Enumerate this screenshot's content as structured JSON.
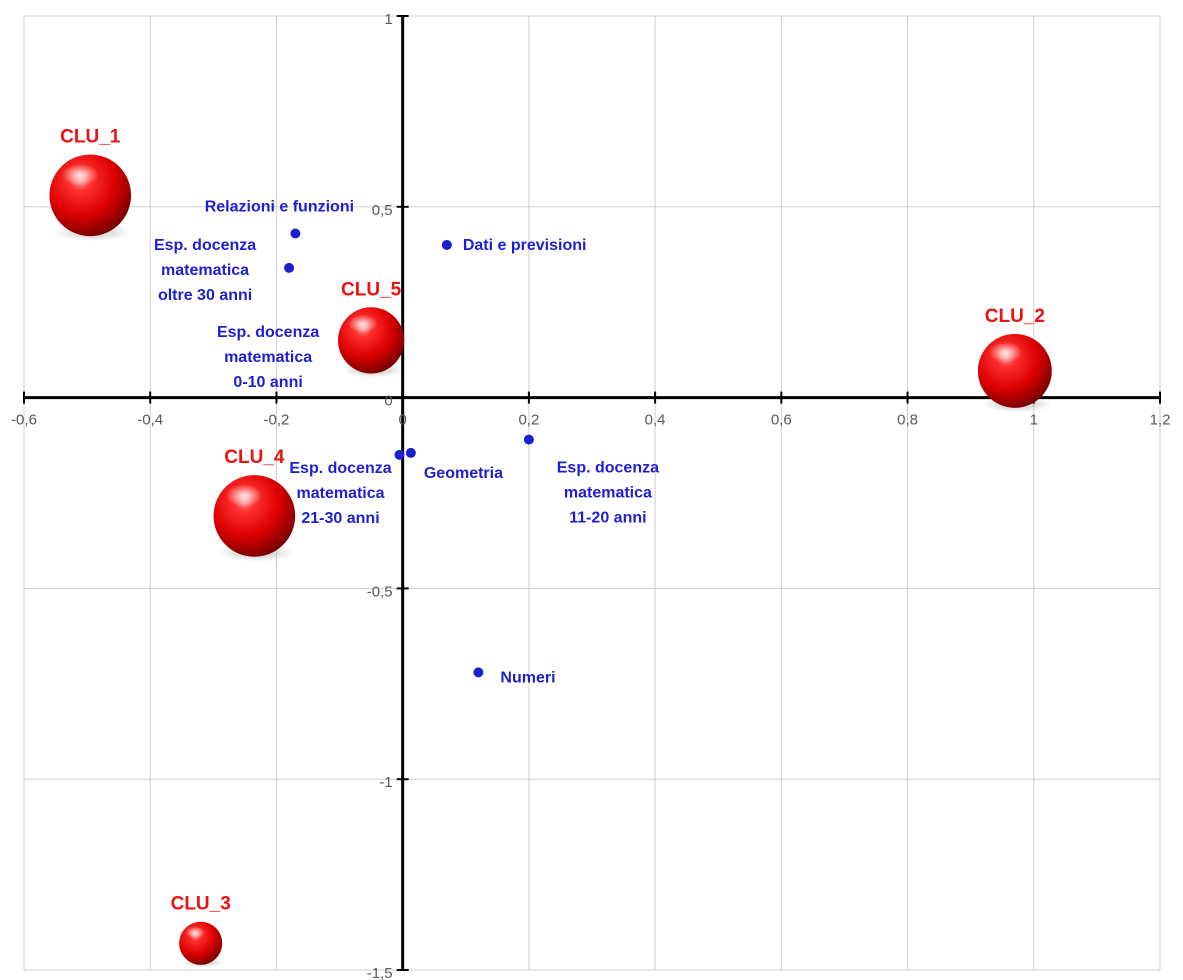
{
  "chart_data": {
    "type": "scatter",
    "xlim": [
      -0.6,
      1.2
    ],
    "ylim": [
      -1.5,
      1
    ],
    "x_ticks": [
      -0.6,
      -0.4,
      -0.2,
      0,
      0.2,
      0.4,
      0.6,
      0.8,
      1,
      1.2
    ],
    "y_ticks": [
      -1.5,
      -1,
      -0.5,
      0,
      0.5,
      1
    ],
    "x_tick_labels": [
      "-0,6",
      "-0,4",
      "-0,2",
      "0",
      "0,2",
      "0,4",
      "0,6",
      "0,8",
      "1",
      "1,2"
    ],
    "y_tick_labels": [
      "-1,5",
      "-1",
      "-0,5",
      "0",
      "0,5",
      "1"
    ],
    "grid": true,
    "points": [
      {
        "lines": [
          "Relazioni e funzioni"
        ],
        "x": -0.17,
        "y": 0.43
      },
      {
        "lines": [
          "Esp. docenza",
          "matematica",
          "oltre 30 anni"
        ],
        "x": -0.18,
        "y": 0.34
      },
      {
        "lines": [
          "Dati e previsioni"
        ],
        "x": 0.07,
        "y": 0.4
      },
      {
        "lines": [
          "Esp. docenza",
          "matematica",
          "0-10 anni"
        ],
        "x": -0.05,
        "y": 0.13
      },
      {
        "lines": [
          "Esp. docenza",
          "matematica",
          "21-30 anni"
        ],
        "x": -0.005,
        "y": -0.15
      },
      {
        "lines": [
          "Geometria"
        ],
        "x": 0.013,
        "y": -0.145
      },
      {
        "lines": [
          "Esp. docenza",
          "matematica",
          "11-20 anni"
        ],
        "x": 0.2,
        "y": -0.11
      },
      {
        "lines": [
          "Numeri"
        ],
        "x": 0.12,
        "y": -0.72
      }
    ],
    "clusters": [
      {
        "name": "CLU_1",
        "x": -0.495,
        "y": 0.53,
        "size": 4
      },
      {
        "name": "CLU_2",
        "x": 0.97,
        "y": 0.07,
        "size": 3.5
      },
      {
        "name": "CLU_3",
        "x": -0.32,
        "y": -1.43,
        "size": 1.5
      },
      {
        "name": "CLU_4",
        "x": -0.235,
        "y": -0.31,
        "size": 4
      },
      {
        "name": "CLU_5",
        "x": -0.05,
        "y": 0.15,
        "size": 3
      }
    ],
    "colors": {
      "point": "#1f1fd0",
      "point_label": "#1f1fd0",
      "cluster": "#ee1111",
      "cluster_label": "#ee1111",
      "grid": "#d0d0d0",
      "axis": "#000000"
    }
  }
}
